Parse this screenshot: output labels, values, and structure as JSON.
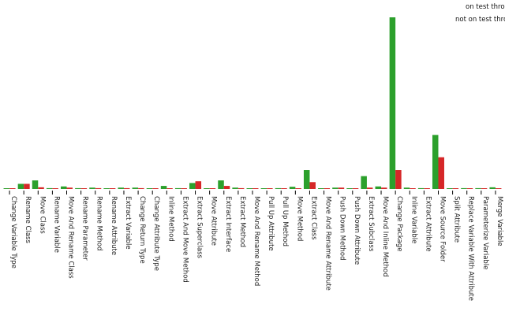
{
  "chart_data": {
    "type": "bar",
    "legend": {
      "placement": "top-right",
      "entries": [
        "on test through",
        "not on test through"
      ]
    },
    "ylim": [
      0,
      100
    ],
    "grid": false,
    "categories": [
      "Change Variable Type",
      "Rename Class",
      "Move Class",
      "Rename Variable",
      "Move And Rename Class",
      "Rename Parameter",
      "Rename Method",
      "Rename Attribute",
      "Extract Variable",
      "Change Return Type",
      "Change Attribute Type",
      "Inline Method",
      "Extract And Move Method",
      "Extract Superclass",
      "Move Attribute",
      "Extract Interface",
      "Extract Method",
      "Move And Rename Method",
      "Pull Up Attribute",
      "Pull Up Method",
      "Move Method",
      "Extract Class",
      "Move And Rename Attribute",
      "Push Down Method",
      "Push Down Attribute",
      "Extract Subclass",
      "Move And Inline Method",
      "Change Package",
      "Inline Variable",
      "Extract Attribute",
      "Move Source Folder",
      "Split Attribute",
      "Replace Variable With Attribute",
      "Parameterize Variable",
      "Merge Variable"
    ],
    "series": [
      {
        "color": "#2ca02c",
        "values": [
          0.3,
          3,
          5,
          0.5,
          1.5,
          0.5,
          0.8,
          0.3,
          0.8,
          0.8,
          0.3,
          1.8,
          0.5,
          3.5,
          0.3,
          5,
          0.8,
          0.3,
          0.3,
          0.5,
          1.3,
          11,
          0.3,
          0.8,
          0.3,
          7.5,
          1.5,
          100,
          0.8,
          0.5,
          31.5,
          0.3,
          0.5,
          0.5,
          1
        ]
      },
      {
        "color": "#d62728",
        "values": [
          0.3,
          3,
          1,
          0.3,
          0.8,
          0.3,
          0.5,
          0.3,
          0.5,
          0.5,
          0.3,
          0.3,
          0.3,
          4.5,
          0.3,
          1.8,
          0.5,
          0.3,
          0.3,
          0.3,
          0.3,
          4,
          0.3,
          0.8,
          0.3,
          0.8,
          0.8,
          11,
          0.3,
          0.3,
          18.5,
          0.3,
          0.3,
          0.3,
          0.3
        ]
      }
    ]
  }
}
